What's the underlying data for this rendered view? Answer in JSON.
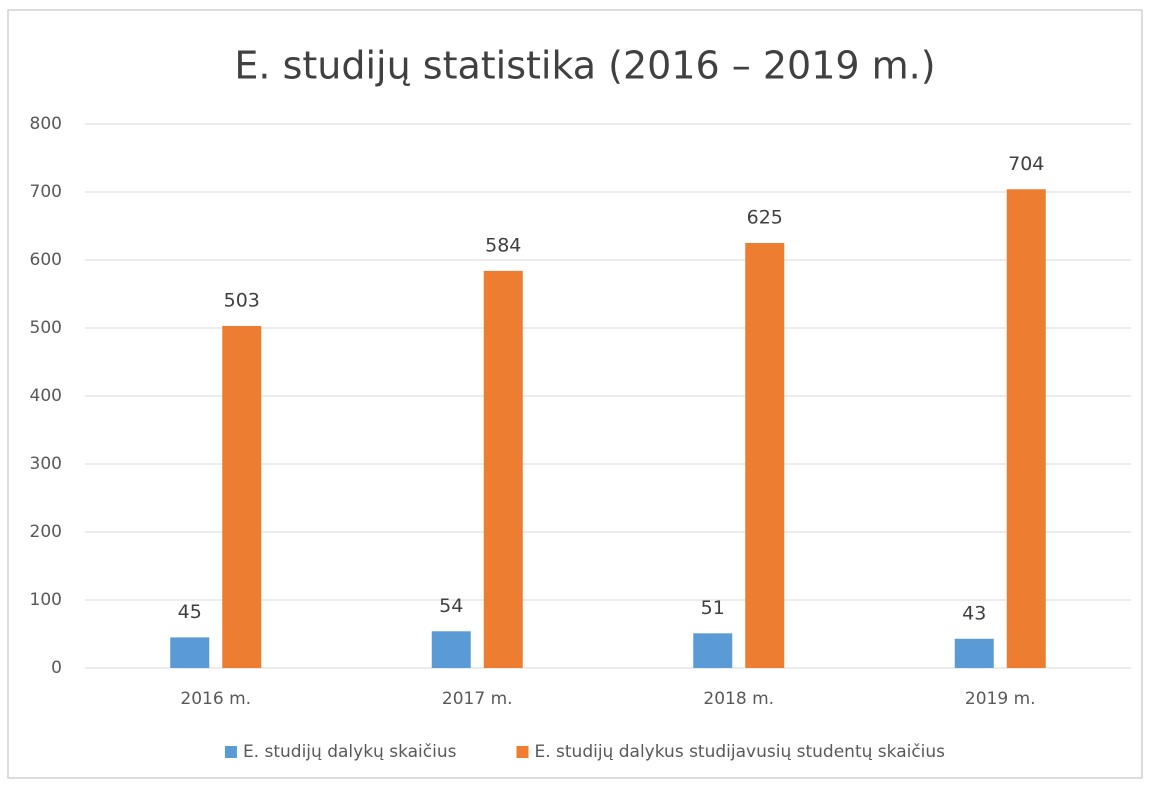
{
  "chart_data": {
    "type": "bar",
    "title": "E. studijų statistika (2016 – 2019 m.)",
    "categories": [
      "2016 m.",
      "2017 m.",
      "2018 m.",
      "2019 m."
    ],
    "series": [
      {
        "name": "E. studijų dalykų skaičius",
        "color": "#5b9bd5",
        "values": [
          45,
          54,
          51,
          43
        ]
      },
      {
        "name": "E. studijų dalykus studijavusių studentų skaičius",
        "color": "#ed7d31",
        "values": [
          503,
          584,
          625,
          704
        ]
      }
    ],
    "ylim": [
      0,
      800
    ],
    "yticks": [
      0,
      100,
      200,
      300,
      400,
      500,
      600,
      700,
      800
    ],
    "grid": true,
    "legend": "bottom"
  }
}
